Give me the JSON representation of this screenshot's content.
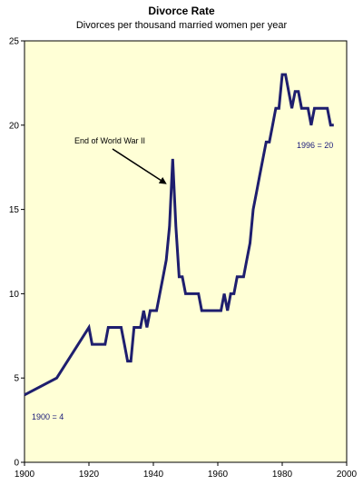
{
  "chart_data": {
    "type": "line",
    "title": "Divorce Rate",
    "subtitle": "Divorces per thousand married women per year",
    "xlim": [
      1900,
      2000
    ],
    "ylim": [
      0,
      25
    ],
    "xticks": [
      "1900",
      "1920",
      "1940",
      "1960",
      "1980",
      "2000"
    ],
    "yticks": [
      "0",
      "5",
      "10",
      "15",
      "20",
      "25"
    ],
    "grid": false,
    "plot_background": "#ffffd6",
    "line_color": "#1e1e6e",
    "series": [
      {
        "x": [
          1900,
          1910,
          1920,
          1921,
          1922,
          1925,
          1926,
          1927,
          1928,
          1929,
          1930,
          1931,
          1932,
          1933,
          1934,
          1935,
          1936,
          1937,
          1938,
          1939,
          1940,
          1941,
          1942,
          1943,
          1944,
          1945,
          1946,
          1947,
          1948,
          1949,
          1950,
          1951,
          1952,
          1953,
          1954,
          1955,
          1956,
          1957,
          1958,
          1959,
          1960,
          1961,
          1962,
          1963,
          1964,
          1965,
          1966,
          1967,
          1968,
          1969,
          1970,
          1971,
          1972,
          1973,
          1974,
          1975,
          1976,
          1977,
          1978,
          1979,
          1980,
          1981,
          1982,
          1983,
          1984,
          1985,
          1986,
          1987,
          1988,
          1989,
          1990,
          1991,
          1992,
          1993,
          1994,
          1995,
          1996
        ],
        "y": [
          4,
          5,
          8,
          7,
          7,
          7,
          8,
          8,
          8,
          8,
          8,
          7,
          6,
          6,
          8,
          8,
          8,
          9,
          8,
          9,
          9,
          9,
          10,
          11,
          12,
          14,
          18,
          14,
          11,
          11,
          10,
          10,
          10,
          10,
          10,
          9,
          9,
          9,
          9,
          9,
          9,
          9,
          10,
          9,
          10,
          10,
          11,
          11,
          11,
          12,
          13,
          15,
          16,
          17,
          18,
          19,
          19,
          20,
          21,
          21,
          23,
          23,
          22,
          21,
          22,
          22,
          21,
          21,
          21,
          20,
          21,
          21,
          21,
          21,
          21,
          20,
          20
        ]
      }
    ],
    "annotations": [
      {
        "text": "End of World War II",
        "points_to": [
          1945,
          16.5
        ]
      },
      {
        "text": "1900 = 4"
      },
      {
        "text": "1996 = 20"
      }
    ]
  }
}
